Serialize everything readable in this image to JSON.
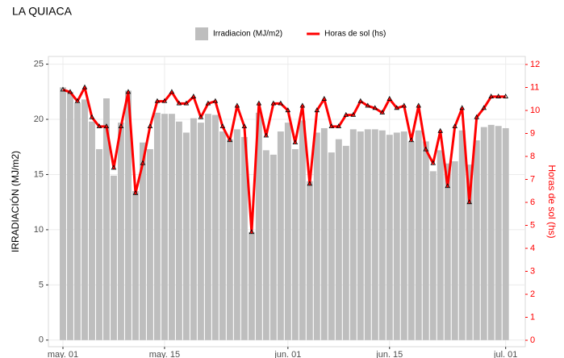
{
  "chart_data": {
    "type": "bar",
    "title": "LA QUIACA",
    "x": [
      0,
      1,
      2,
      3,
      4,
      5,
      6,
      7,
      8,
      9,
      10,
      11,
      12,
      13,
      14,
      15,
      16,
      17,
      18,
      19,
      20,
      21,
      22,
      23,
      24,
      25,
      26,
      27,
      28,
      29,
      30,
      31,
      32,
      33,
      34,
      35,
      36,
      37,
      38,
      39,
      40,
      41,
      42,
      43,
      44,
      45,
      46,
      47,
      48,
      49,
      50,
      51,
      52,
      53,
      54,
      55,
      56,
      57,
      58,
      59,
      60,
      61
    ],
    "xlim": [
      -2,
      63.7
    ],
    "xticks": [
      {
        "value": 0,
        "label": "may. 01"
      },
      {
        "value": 14,
        "label": "may. 15"
      },
      {
        "value": 31,
        "label": "jun. 01"
      },
      {
        "value": 45,
        "label": "jun. 15"
      },
      {
        "value": 61,
        "label": "jul. 01"
      }
    ],
    "y_label": "IRRADIACIÓN (MJ/m2)",
    "y2_label": "Horas de sol (hs)",
    "ylim": [
      -0.6,
      25.7
    ],
    "yticks": [
      0,
      5,
      10,
      15,
      20,
      25
    ],
    "y2lim": [
      -0.28,
      12.35
    ],
    "y2ticks": [
      0,
      1,
      2,
      3,
      4,
      5,
      6,
      7,
      8,
      9,
      10,
      11,
      12
    ],
    "grid": true,
    "y2_color": "#ff0000",
    "series": [
      {
        "name": "Irradiacion (MJ/m2)",
        "type": "bar",
        "color": "#bebebe",
        "values": [
          22.9,
          22.5,
          21.5,
          21.8,
          19.8,
          17.3,
          21.9,
          14.9,
          19.7,
          22.6,
          13.5,
          17.9,
          17.3,
          20.6,
          20.5,
          20.5,
          19.8,
          18.8,
          20.1,
          19.7,
          20.5,
          20.4,
          18.9,
          18.2,
          19.1,
          18.4,
          9.8,
          20.6,
          17.2,
          16.8,
          18.9,
          19.7,
          17.3,
          19.9,
          14.4,
          18.8,
          19.2,
          17.0,
          18.2,
          17.6,
          19.1,
          18.9,
          19.1,
          19.1,
          19.0,
          18.6,
          18.8,
          18.9,
          18.0,
          19.0,
          18.0,
          15.3,
          17.2,
          16.0,
          16.2,
          19.0,
          15.9,
          18.1,
          19.3,
          19.5,
          19.4,
          19.2
        ]
      },
      {
        "name": "Horas de sol (hs)",
        "type": "line",
        "axis": "y2",
        "color": "#ff0000",
        "values": [
          10.9,
          10.8,
          10.4,
          11.0,
          9.7,
          9.3,
          9.3,
          7.5,
          9.3,
          10.8,
          6.4,
          7.7,
          9.3,
          10.4,
          10.4,
          10.8,
          10.3,
          10.3,
          10.6,
          9.7,
          10.3,
          10.4,
          9.3,
          8.7,
          10.2,
          9.3,
          4.7,
          10.3,
          8.9,
          10.3,
          10.3,
          10.0,
          8.6,
          10.2,
          6.8,
          10.0,
          10.5,
          9.3,
          9.3,
          9.8,
          9.8,
          10.4,
          10.2,
          10.1,
          9.9,
          10.5,
          10.1,
          10.2,
          8.7,
          10.2,
          8.3,
          7.7,
          9.1,
          6.7,
          9.3,
          10.1,
          6.0,
          9.7,
          10.1,
          10.6,
          10.6,
          10.6
        ]
      }
    ]
  }
}
